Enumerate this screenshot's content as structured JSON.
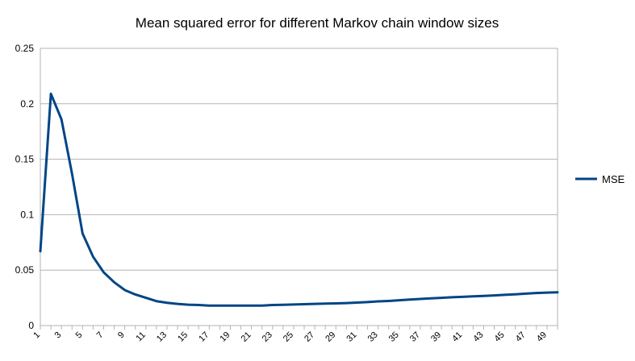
{
  "chart_data": {
    "type": "line",
    "title": "Mean squared error for different Markov chain window sizes",
    "xlabel": "",
    "ylabel": "",
    "x": [
      1,
      2,
      3,
      4,
      5,
      6,
      7,
      8,
      9,
      10,
      11,
      12,
      13,
      14,
      15,
      16,
      17,
      18,
      19,
      20,
      21,
      22,
      23,
      24,
      25,
      26,
      27,
      28,
      29,
      30,
      31,
      32,
      33,
      34,
      35,
      36,
      37,
      38,
      39,
      40,
      41,
      42,
      43,
      44,
      45,
      46,
      47,
      48,
      49,
      50
    ],
    "x_tick_labels": [
      "1",
      "3",
      "5",
      "7",
      "9",
      "11",
      "13",
      "15",
      "17",
      "19",
      "21",
      "23",
      "25",
      "27",
      "29",
      "31",
      "33",
      "35",
      "37",
      "39",
      "41",
      "43",
      "45",
      "47",
      "49"
    ],
    "y_tick_labels": [
      "0",
      "0.05",
      "0.1",
      "0.15",
      "0.2",
      "0.25"
    ],
    "ylim": [
      0,
      0.25
    ],
    "grid": true,
    "legend_position": "right",
    "series": [
      {
        "name": "MSE",
        "color": "#004586",
        "values": [
          0.067,
          0.209,
          0.186,
          0.137,
          0.083,
          0.062,
          0.048,
          0.039,
          0.032,
          0.028,
          0.025,
          0.022,
          0.0205,
          0.0195,
          0.0188,
          0.0185,
          0.018,
          0.018,
          0.018,
          0.018,
          0.018,
          0.018,
          0.0185,
          0.0187,
          0.019,
          0.0193,
          0.0195,
          0.0198,
          0.02,
          0.0203,
          0.0207,
          0.0212,
          0.0218,
          0.0222,
          0.0228,
          0.0234,
          0.024,
          0.0245,
          0.025,
          0.0255,
          0.0259,
          0.0263,
          0.0267,
          0.0272,
          0.0277,
          0.0282,
          0.0288,
          0.0293,
          0.0297,
          0.03
        ]
      }
    ]
  }
}
